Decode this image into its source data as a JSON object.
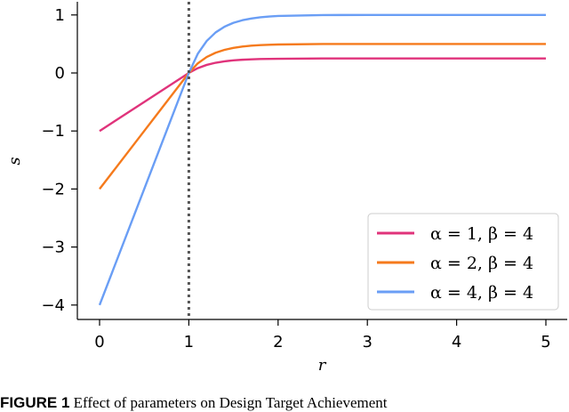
{
  "chart_data": {
    "type": "line",
    "xlabel": "r",
    "ylabel": "s",
    "xlim": [
      -0.25,
      5.3
    ],
    "ylim": [
      -4.25,
      1.25
    ],
    "xticks": [
      0,
      1,
      2,
      3,
      4,
      5
    ],
    "yticks": [
      -4,
      -3,
      -2,
      -1,
      0,
      1
    ],
    "xtick_labels": [
      "0",
      "1",
      "2",
      "3",
      "4",
      "5"
    ],
    "ytick_labels": [
      "−4",
      "−3",
      "−2",
      "−1",
      "0",
      "1"
    ],
    "vline": {
      "x": 1,
      "style": "dotted",
      "color": "#555555"
    },
    "grid": false,
    "legend_position": "lower-right",
    "x": [
      0,
      0.5,
      1,
      1.1,
      1.2,
      1.3,
      1.4,
      1.5,
      1.6,
      1.7,
      1.8,
      1.9,
      2,
      2.5,
      3,
      3.5,
      4,
      4.5,
      5
    ],
    "series": [
      {
        "name": "α = 1, β = 4",
        "color": "#e0337b",
        "values": [
          -1,
          -0.5,
          0,
          0.083,
          0.139,
          0.176,
          0.201,
          0.217,
          0.228,
          0.235,
          0.24,
          0.243,
          0.245,
          0.2495,
          0.25,
          0.25,
          0.25,
          0.25,
          0.25
        ]
      },
      {
        "name": "α = 2, β = 4",
        "color": "#f57a1c",
        "values": [
          -2,
          -1,
          0,
          0.165,
          0.275,
          0.349,
          0.399,
          0.432,
          0.455,
          0.47,
          0.48,
          0.486,
          0.491,
          0.499,
          0.5,
          0.5,
          0.5,
          0.5,
          0.5
        ]
      },
      {
        "name": "α = 4, β = 4",
        "color": "#6a9ef5",
        "values": [
          -4,
          -2,
          0,
          0.33,
          0.551,
          0.699,
          0.798,
          0.865,
          0.909,
          0.939,
          0.959,
          0.973,
          0.982,
          0.998,
          1.0,
          1.0,
          1.0,
          1.0,
          1.0
        ]
      }
    ]
  },
  "caption": {
    "label": "FIGURE 1",
    "text": " Effect of parameters on Design Target Achievement"
  }
}
